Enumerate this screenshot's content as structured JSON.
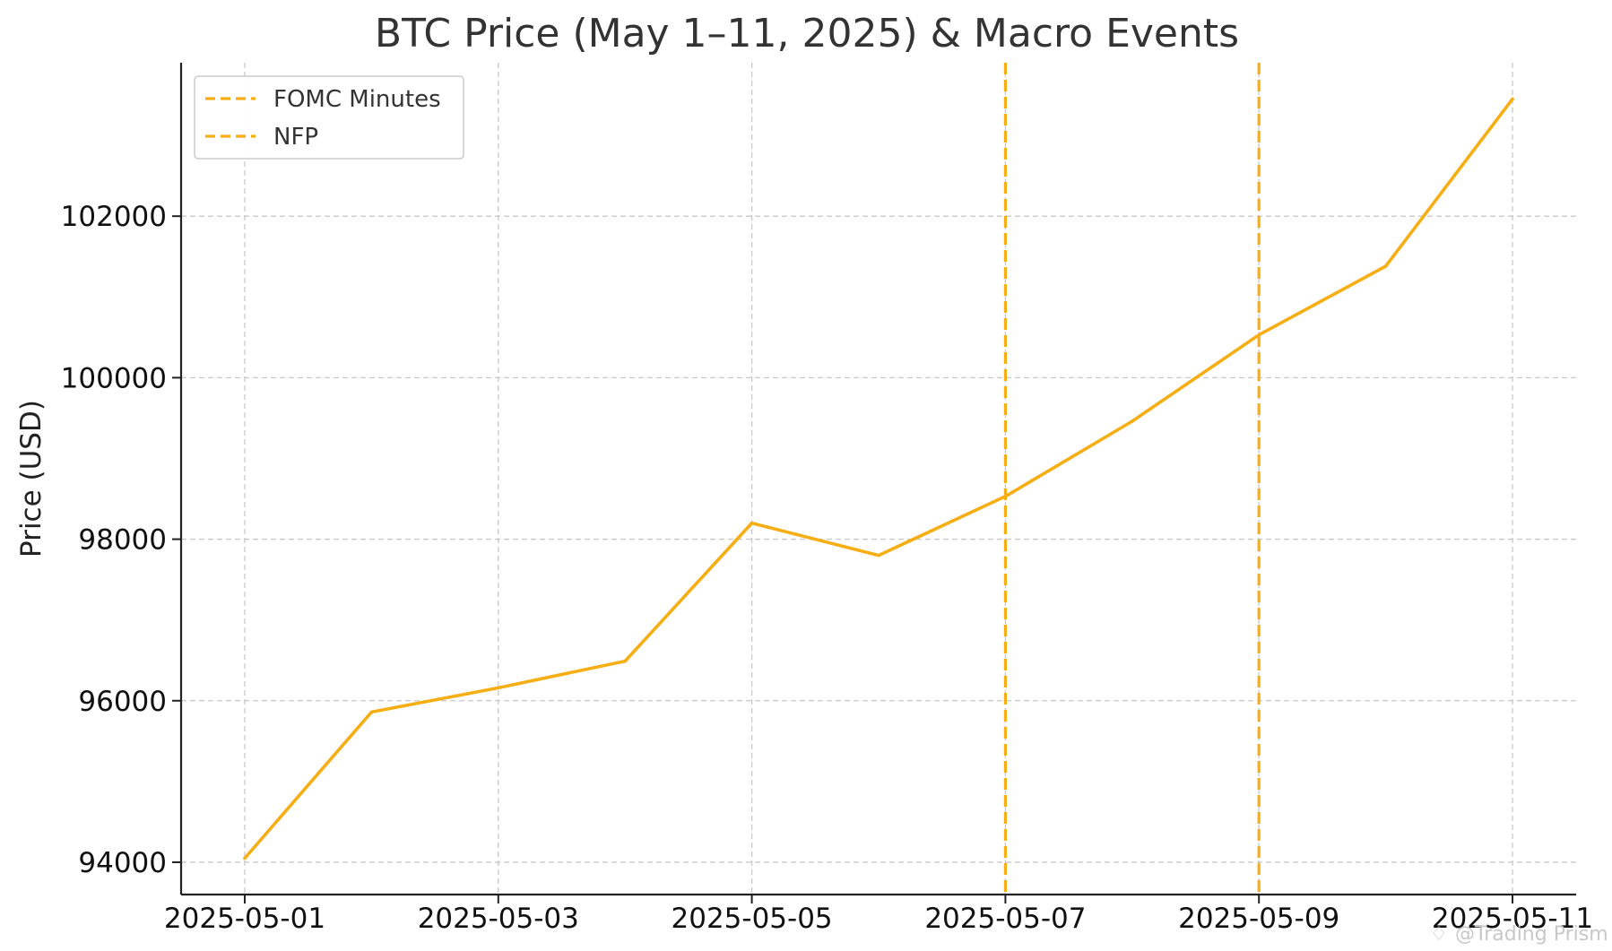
{
  "chart_data": {
    "type": "line",
    "title": "BTC Price (May 1–11, 2025) & Macro Events",
    "xlabel": "",
    "ylabel": "Price (USD)",
    "x": [
      "2025-05-01",
      "2025-05-02",
      "2025-05-03",
      "2025-05-04",
      "2025-05-05",
      "2025-05-06",
      "2025-05-07",
      "2025-05-08",
      "2025-05-09",
      "2025-05-10",
      "2025-05-11"
    ],
    "x_tick_labels": [
      "2025-05-01",
      "2025-05-03",
      "2025-05-05",
      "2025-05-07",
      "2025-05-09",
      "2025-05-11"
    ],
    "y_ticks": [
      94000,
      96000,
      98000,
      100000,
      102000
    ],
    "ylim": [
      93600,
      103900
    ],
    "series": [
      {
        "values": [
          94050,
          95860,
          96160,
          96490,
          98200,
          97800,
          98530,
          99460,
          100530,
          101380,
          103450
        ],
        "color": "#f5ae14"
      }
    ],
    "vlines": [
      {
        "name": "FOMC Minutes",
        "x": "2025-05-07",
        "color": "#f5ae14",
        "style": "dashed"
      },
      {
        "name": "NFP",
        "x": "2025-05-09",
        "color": "#f5ae14",
        "style": "dashed"
      }
    ],
    "legend_position": "top-left",
    "grid": true
  },
  "watermark": "@Trading Prism"
}
